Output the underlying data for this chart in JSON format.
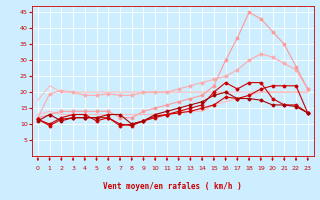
{
  "background_color": "#cceeff",
  "grid_color": "#aadddd",
  "xlabel": "Vent moyen/en rafales ( km/h )",
  "xlabel_color": "#cc0000",
  "tick_color": "#cc0000",
  "xlim": [
    -0.5,
    23.5
  ],
  "ylim": [
    0,
    47
  ],
  "yticks": [
    5,
    10,
    15,
    20,
    25,
    30,
    35,
    40,
    45
  ],
  "xticks": [
    0,
    1,
    2,
    3,
    4,
    5,
    6,
    7,
    8,
    9,
    10,
    11,
    12,
    13,
    14,
    15,
    16,
    17,
    18,
    19,
    20,
    21,
    22,
    23
  ],
  "series": [
    {
      "x": [
        0,
        1,
        2,
        3,
        4,
        5,
        6,
        7,
        8,
        9,
        10,
        11,
        12,
        13,
        14,
        15,
        16,
        17,
        18,
        19,
        20,
        21,
        22,
        23
      ],
      "y": [
        17.5,
        22,
        20,
        20,
        20,
        20,
        20,
        20,
        20,
        20,
        20,
        20,
        20,
        20,
        20,
        20,
        20,
        20,
        20,
        20,
        20,
        20,
        20,
        20
      ],
      "color": "#ffbbbb",
      "marker": null,
      "linewidth": 0.8,
      "linestyle": "-"
    },
    {
      "x": [
        0,
        1,
        2,
        3,
        4,
        5,
        6,
        7,
        8,
        9,
        10,
        11,
        12,
        13,
        14,
        15,
        16,
        17,
        18,
        19,
        20,
        21,
        22,
        23
      ],
      "y": [
        13,
        14,
        13,
        13,
        13,
        13,
        13,
        13,
        13,
        13,
        13,
        13,
        14,
        14,
        14,
        16,
        17,
        18,
        19,
        20,
        20,
        20,
        20,
        20
      ],
      "color": "#ffbbbb",
      "marker": null,
      "linewidth": 0.8,
      "linestyle": "-"
    },
    {
      "x": [
        0,
        1,
        2,
        3,
        4,
        5,
        6,
        7,
        8,
        9,
        10,
        11,
        12,
        13,
        14,
        15,
        16,
        17,
        18,
        19,
        20,
        21,
        22,
        23
      ],
      "y": [
        12,
        19.5,
        20.5,
        20,
        19,
        19,
        19.5,
        19,
        19,
        20,
        20,
        20,
        21,
        22,
        23,
        24,
        25,
        27,
        30,
        32,
        31,
        29,
        27,
        21
      ],
      "color": "#ffaaaa",
      "marker": "D",
      "markersize": 1.5,
      "linewidth": 0.8,
      "linestyle": "-"
    },
    {
      "x": [
        0,
        1,
        2,
        3,
        4,
        5,
        6,
        7,
        8,
        9,
        10,
        11,
        12,
        13,
        14,
        15,
        16,
        17,
        18,
        19,
        20,
        21,
        22,
        23
      ],
      "y": [
        12,
        13,
        14,
        14,
        14,
        14,
        14,
        12,
        12,
        14,
        15,
        16,
        17,
        18,
        19,
        22,
        30,
        37,
        45,
        43,
        39,
        35,
        28,
        21
      ],
      "color": "#ff9999",
      "marker": "D",
      "markersize": 1.5,
      "linewidth": 0.8,
      "linestyle": "-"
    },
    {
      "x": [
        0,
        1,
        2,
        3,
        4,
        5,
        6,
        7,
        8,
        9,
        10,
        11,
        12,
        13,
        14,
        15,
        16,
        17,
        18,
        19,
        20,
        21,
        22,
        23
      ],
      "y": [
        11.5,
        10,
        12,
        13,
        13,
        11,
        12,
        10,
        9.5,
        11,
        12.5,
        13,
        14,
        15,
        16,
        20,
        23,
        21,
        23,
        23,
        18,
        16,
        16,
        13.5
      ],
      "color": "#cc0000",
      "marker": "D",
      "markersize": 1.5,
      "linewidth": 0.8,
      "linestyle": "-"
    },
    {
      "x": [
        0,
        1,
        2,
        3,
        4,
        5,
        6,
        7,
        8,
        9,
        10,
        11,
        12,
        13,
        14,
        15,
        16,
        17,
        18,
        19,
        20,
        21,
        22,
        23
      ],
      "y": [
        11.5,
        9.5,
        11.5,
        12,
        12,
        12,
        12,
        9.5,
        10,
        11,
        12,
        13,
        13.5,
        14,
        15,
        16,
        18.5,
        18,
        19,
        21,
        22,
        22,
        22,
        13.5
      ],
      "color": "#cc0000",
      "marker": "D",
      "markersize": 1.5,
      "linewidth": 0.8,
      "linestyle": "-"
    },
    {
      "x": [
        0,
        1,
        2,
        3,
        4,
        5,
        6,
        7,
        8,
        9,
        10,
        11,
        12,
        13,
        14,
        15,
        16,
        17,
        18,
        19,
        20,
        21,
        22,
        23
      ],
      "y": [
        11,
        13,
        11,
        12,
        12,
        12,
        13,
        13,
        10,
        11,
        13,
        14,
        15,
        16,
        17,
        19,
        20,
        18,
        18,
        17.5,
        16,
        16,
        15.5,
        13.5
      ],
      "color": "#aa0000",
      "marker": "D",
      "markersize": 1.5,
      "linewidth": 0.8,
      "linestyle": "-"
    }
  ],
  "arrow_color": "#cc0000"
}
